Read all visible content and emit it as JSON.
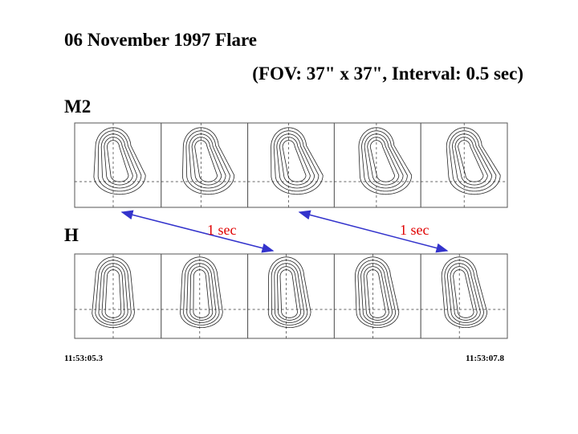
{
  "header": {
    "title": "06 November 1997 Flare",
    "subtitle": "(FOV: 37\" x 37\", Interval: 0.5 sec)"
  },
  "rows": [
    {
      "label": "M2"
    },
    {
      "label": "H"
    }
  ],
  "arrow_labels": [
    "1 sec",
    "1 sec"
  ],
  "time_start": "11:53:05.3",
  "time_end": "11:53:07.8"
}
